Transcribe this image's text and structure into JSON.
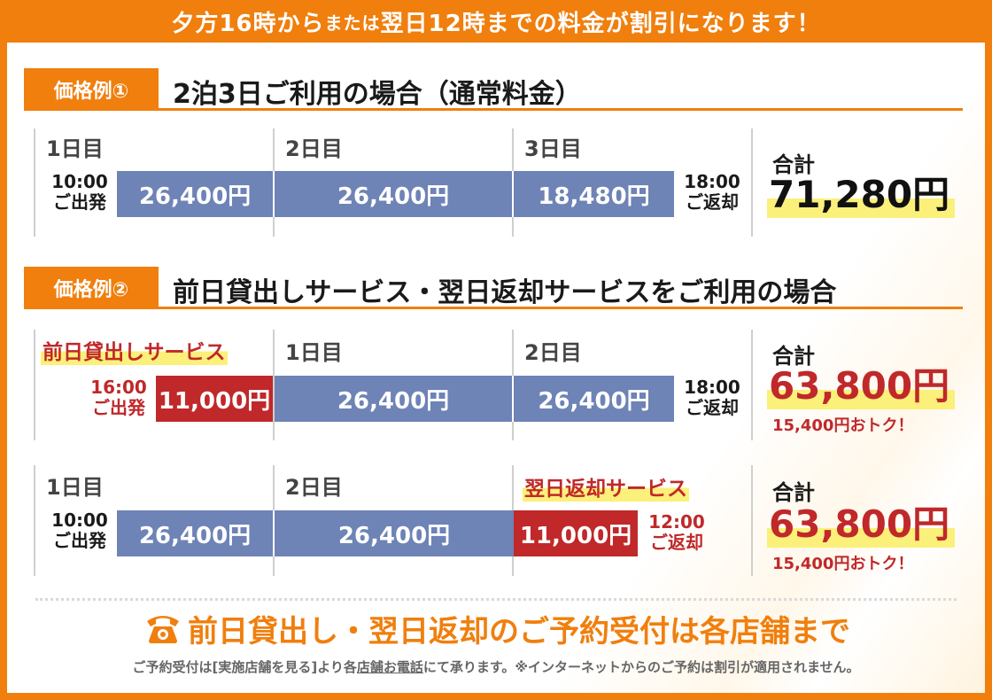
{
  "banner": {
    "part1": "夕方16時から",
    "part2": "または",
    "part3": "翌日12時までの料金が割引になります！"
  },
  "example1": {
    "tag": "価格例①",
    "title": "2泊3日ご利用の場合（通常料金）",
    "days": [
      "1日目",
      "2日目",
      "3日目"
    ],
    "depart_time": "10:00",
    "depart_label": "ご出発",
    "prices": [
      "26,400円",
      "26,400円",
      "18,480円"
    ],
    "return_time": "18:00",
    "return_label": "ご返却",
    "total_label": "合計",
    "total_value": "71,280円"
  },
  "example2": {
    "tag": "価格例②",
    "title": "前日貸出しサービス・翌日返却サービスをご利用の場合",
    "rowA": {
      "service_label": "前日貸出しサービス",
      "days": [
        "1日目",
        "2日目"
      ],
      "depart_time": "16:00",
      "depart_label": "ご出発",
      "service_price": "11,000円",
      "prices": [
        "26,400円",
        "26,400円"
      ],
      "return_time": "18:00",
      "return_label": "ご返却",
      "total_label": "合計",
      "total_value": "63,800円",
      "saving": "15,400円おトク！"
    },
    "rowB": {
      "days": [
        "1日目",
        "2日目"
      ],
      "service_label": "翌日返却サービス",
      "depart_time": "10:00",
      "depart_label": "ご出発",
      "prices": [
        "26,400円",
        "26,400円"
      ],
      "service_price": "11,000円",
      "return_time": "12:00",
      "return_label": "ご返却",
      "total_label": "合計",
      "total_value": "63,800円",
      "saving": "15,400円おトク！"
    }
  },
  "footer": {
    "icon": "phone-icon",
    "headline": "前日貸出し・翌日返却のご予約受付は各店舗まで",
    "note_prefix": "ご予約受付は",
    "note_link": "[実施店舗を見る]",
    "note_middle1": "より各",
    "note_underlined": "店舗お電話",
    "note_suffix": "にて承ります。※インターネットからのご予約は割引が適用されません。"
  },
  "colors": {
    "orange": "#f07f0e",
    "blue_bar": "#6e83b6",
    "red": "#c0282a",
    "highlight": "#fbf07a"
  }
}
